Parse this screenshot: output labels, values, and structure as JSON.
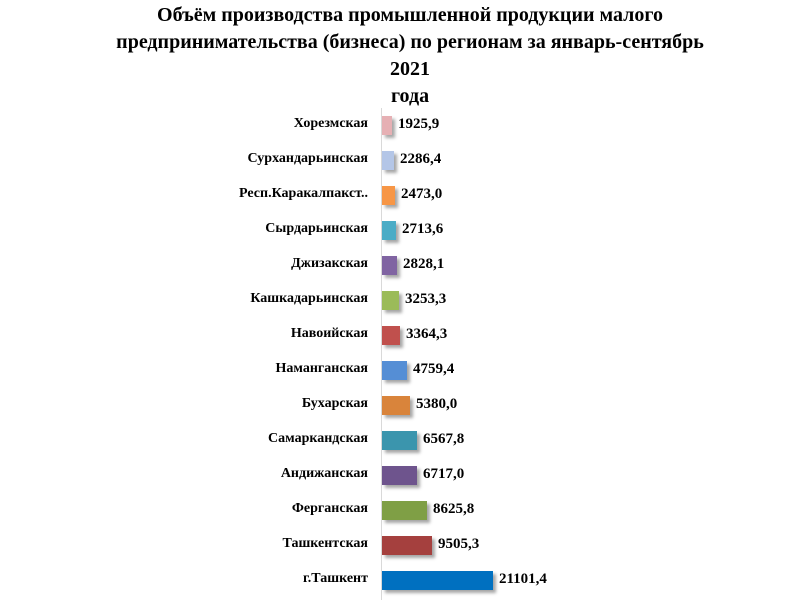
{
  "title": "Объём производства промышленной продукции малого предпринимательства (бизнеса) по регионам за январь-сентябрь 2021 года",
  "title_lines": [
    "Объём производства промышленной продукции малого",
    "предпринимательства (бизнеса) по регионам за январь-сентябрь 2021",
    "года"
  ],
  "chart_data": {
    "type": "bar",
    "orientation": "horizontal",
    "title": "Объём производства промышленной продукции малого предпринимательства (бизнеса) по регионам за январь-сентябрь 2021 года",
    "xlabel": "",
    "ylabel": "",
    "grid": false,
    "legend": null,
    "categories": [
      "Хорезмская",
      "Сурхандарьинская",
      "Респ.Каракалпакст..",
      "Сырдарьинская",
      "Джизакская",
      "Кашкадарьинская",
      "Навоийская",
      "Наманганская",
      "Бухарская",
      "Самаркандская",
      "Андижанская",
      "Ферганская",
      "Ташкентская",
      "г.Ташкент"
    ],
    "values": [
      1925.9,
      2286.4,
      2473.0,
      2713.6,
      2828.1,
      3253.3,
      3364.3,
      4759.4,
      5380.0,
      6567.8,
      6717.0,
      8625.8,
      9505.3,
      21101.4
    ],
    "value_labels": [
      "1925,9",
      "2286,4",
      "2473,0",
      "2713,6",
      "2828,1",
      "3253,3",
      "3364,3",
      "4759,4",
      "5380,0",
      "6567,8",
      "6717,0",
      "8625,8",
      "9505,3",
      "21101,4"
    ],
    "colors": [
      "#e6b0b4",
      "#b4c6e7",
      "#f79646",
      "#4bacc6",
      "#8064a2",
      "#9bbb59",
      "#c0504d",
      "#558ed5",
      "#d9843b",
      "#3b95ad",
      "#6e548d",
      "#7f9f45",
      "#a5403e",
      "#0070c0"
    ]
  }
}
